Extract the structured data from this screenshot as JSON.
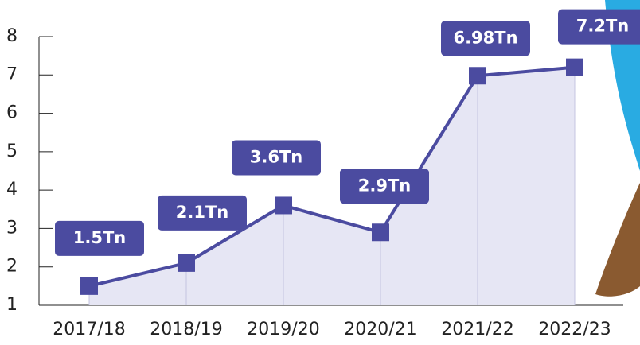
{
  "chart_data": {
    "type": "line",
    "categories": [
      "2017/18",
      "2018/19",
      "2019/20",
      "2020/21",
      "2021/22",
      "2022/23"
    ],
    "series": [
      {
        "color": "#4b4ba0",
        "values": [
          1.5,
          2.1,
          3.6,
          2.9,
          6.98,
          7.2
        ],
        "value_labels": [
          "1.5Tn",
          "2.1Tn",
          "3.6Tn",
          "2.9Tn",
          "6.98Tn",
          "7.2Tn"
        ]
      }
    ],
    "ylim": [
      1,
      8
    ],
    "yticks": [
      1,
      2,
      3,
      4,
      5,
      6,
      7,
      8
    ],
    "area": true
  }
}
